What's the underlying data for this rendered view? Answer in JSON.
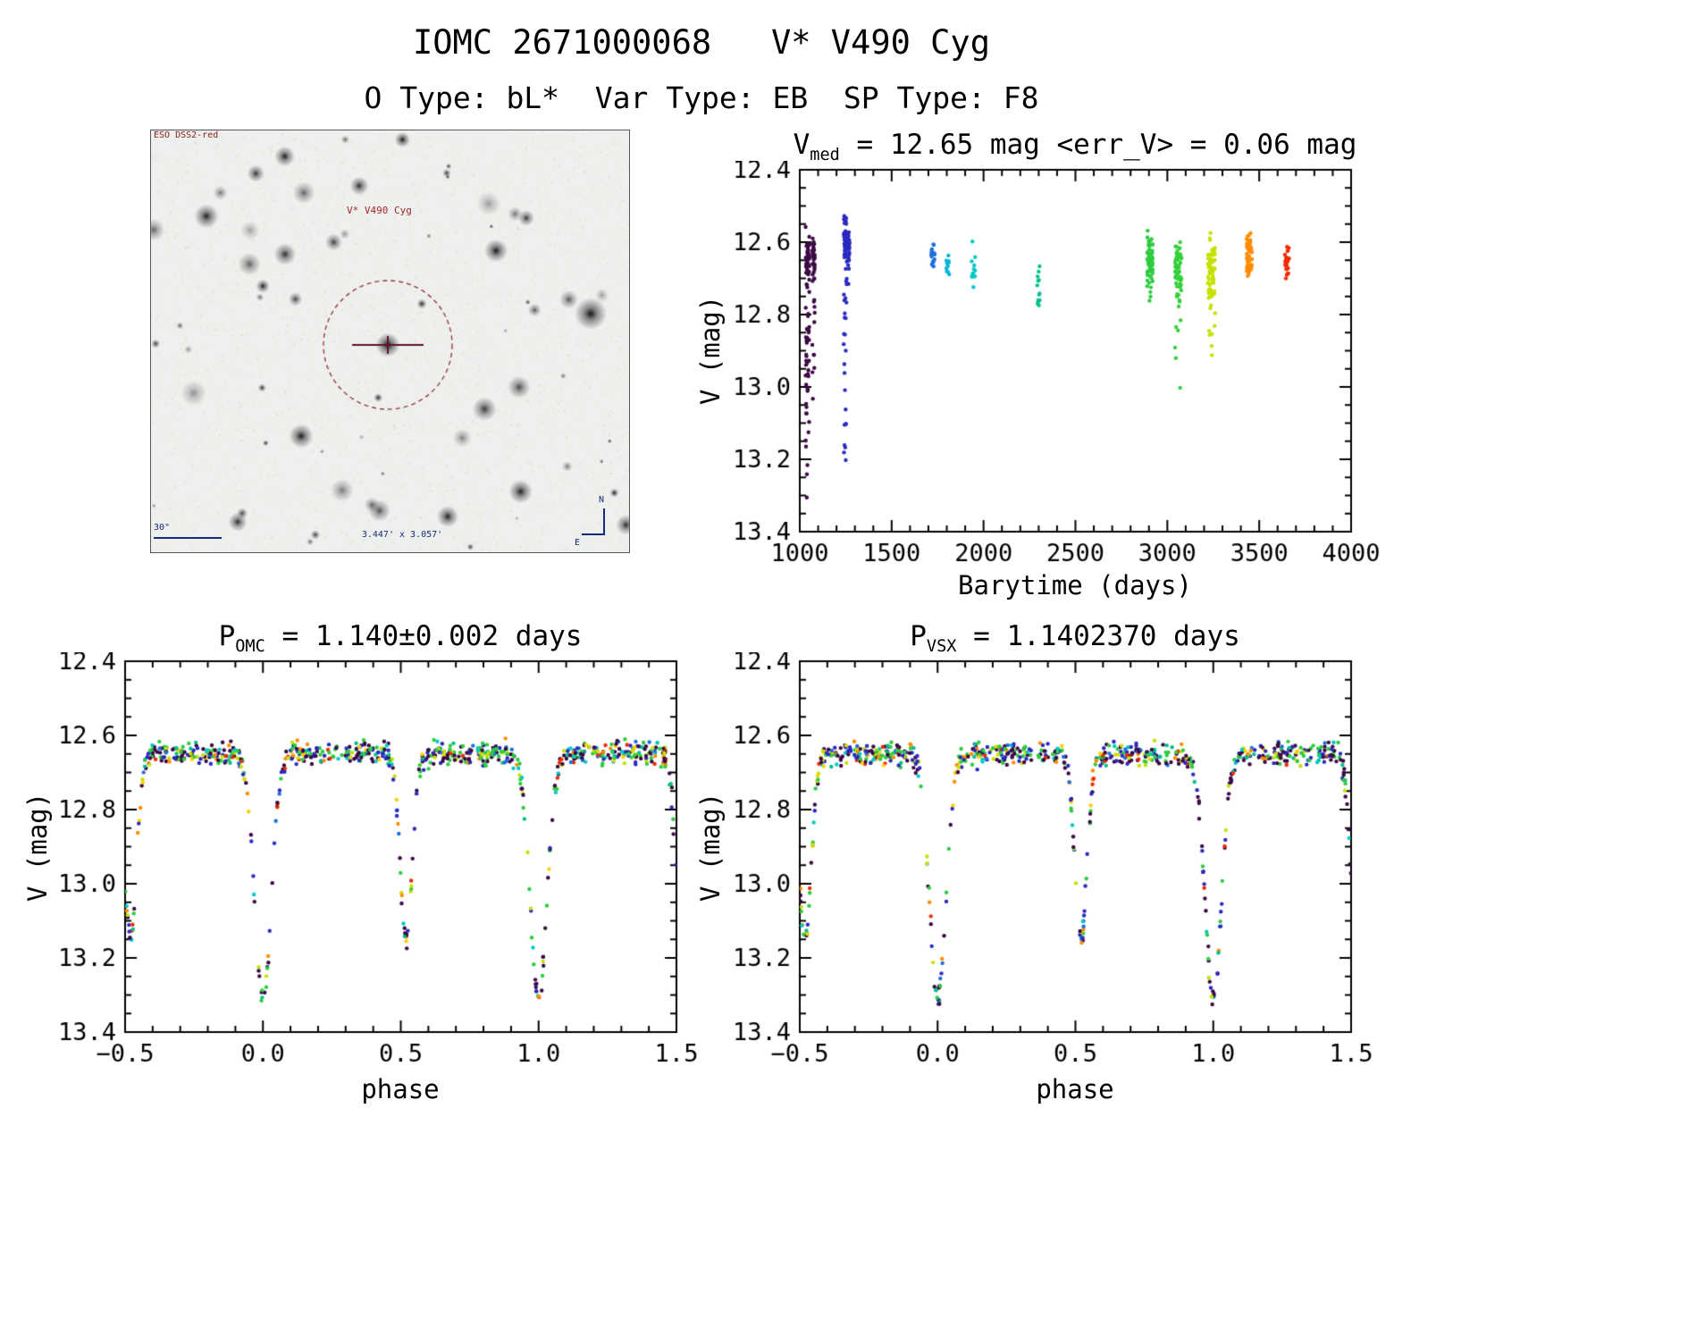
{
  "page": {
    "background": "#ffffff"
  },
  "header": {
    "title": "IOMC 2671000068   V* V490 Cyg",
    "subtitle": "O Type: bL*  Var Type: EB  SP Type: F8"
  },
  "finder": {
    "survey_label": "ESO DSS2-red",
    "target_label": "V* V490 Cyg",
    "scale_label": "30\"",
    "fov_label": "3.447' x 3.057'",
    "compass_north": "N",
    "compass_east": "E",
    "annotation_red": "#a02828",
    "annotation_blue": "#1a2a7a"
  },
  "chart_data": [
    {
      "id": "timeline",
      "type": "scatter",
      "title": {
        "prefix": "V",
        "sub": "med",
        "rest": " = 12.65 mag <err_V> = 0.06 mag"
      },
      "xlabel": "Barytime (days)",
      "ylabel": "V (mag)",
      "xlim": [
        1000,
        4000
      ],
      "ylim": [
        13.4,
        12.4
      ],
      "xticks": [
        1000,
        1500,
        2000,
        2500,
        3000,
        3500,
        4000
      ],
      "xtick_labels": [
        "1000",
        "1500",
        "2000",
        "2500",
        "3000",
        "3500",
        "4000"
      ],
      "yticks": [
        12.4,
        12.6,
        12.8,
        13.0,
        13.2,
        13.4
      ],
      "ytick_labels": [
        "12.4",
        "12.6",
        "12.8",
        "13.0",
        "13.2",
        "13.4"
      ],
      "x_minor_step": 100,
      "y_minor_step": 0.05,
      "clusters": [
        {
          "barytime": 1042,
          "xspread": 10,
          "n": 90,
          "color": "#3b0a45",
          "band": [
            12.53,
            12.78
          ],
          "tail_mag": 13.32,
          "tail_frac": 0.38
        },
        {
          "barytime": 1075,
          "xspread": 7,
          "n": 45,
          "color": "#3b0a45",
          "band": [
            12.55,
            12.75
          ],
          "tail_mag": 13.06,
          "tail_frac": 0.22
        },
        {
          "barytime": 1248,
          "xspread": 9,
          "n": 75,
          "color": "#2a2ac0",
          "band": [
            12.5,
            12.7
          ],
          "tail_mag": 13.22,
          "tail_frac": 0.3
        },
        {
          "barytime": 1268,
          "xspread": 5,
          "n": 22,
          "color": "#2a2ac0",
          "band": [
            12.55,
            12.7
          ],
          "tail_mag": 12.92,
          "tail_frac": 0.12
        },
        {
          "barytime": 1725,
          "xspread": 10,
          "n": 16,
          "color": "#1e6fe0",
          "band": [
            12.57,
            12.72
          ],
          "tail_mag": 12.72,
          "tail_frac": 0
        },
        {
          "barytime": 1805,
          "xspread": 8,
          "n": 10,
          "color": "#00b4d8",
          "band": [
            12.6,
            12.72
          ],
          "tail_mag": 12.72,
          "tail_frac": 0
        },
        {
          "barytime": 1945,
          "xspread": 10,
          "n": 14,
          "color": "#00c8c8",
          "band": [
            12.58,
            12.76
          ],
          "tail_mag": 12.76,
          "tail_frac": 0
        },
        {
          "barytime": 2300,
          "xspread": 8,
          "n": 14,
          "color": "#00bf8f",
          "band": [
            12.6,
            12.86
          ],
          "tail_mag": 12.86,
          "tail_frac": 0
        },
        {
          "barytime": 2905,
          "xspread": 16,
          "n": 60,
          "color": "#2ecc40",
          "band": [
            12.54,
            12.78
          ],
          "tail_mag": 12.78,
          "tail_frac": 0
        },
        {
          "barytime": 3060,
          "xspread": 18,
          "n": 70,
          "color": "#35d03a",
          "band": [
            12.54,
            12.8
          ],
          "tail_mag": 13.04,
          "tail_frac": 0.12
        },
        {
          "barytime": 3240,
          "xspread": 20,
          "n": 70,
          "color": "#c8e000",
          "band": [
            12.54,
            12.82
          ],
          "tail_mag": 12.92,
          "tail_frac": 0.1
        },
        {
          "barytime": 3445,
          "xspread": 16,
          "n": 45,
          "color": "#ff8c00",
          "band": [
            12.53,
            12.74
          ],
          "tail_mag": 12.74,
          "tail_frac": 0
        },
        {
          "barytime": 3650,
          "xspread": 12,
          "n": 28,
          "color": "#ee2b00",
          "band": [
            12.58,
            12.73
          ],
          "tail_mag": 12.73,
          "tail_frac": 0
        }
      ]
    },
    {
      "id": "phase_omc",
      "type": "scatter",
      "title": {
        "prefix": "P",
        "sub": "OMC",
        "rest": " = 1.140±0.002 days"
      },
      "xlabel": "phase",
      "ylabel": "V (mag)",
      "xlim": [
        -0.5,
        1.5
      ],
      "ylim": [
        13.4,
        12.4
      ],
      "xticks": [
        -0.5,
        0.0,
        0.5,
        1.0,
        1.5
      ],
      "xtick_labels": [
        "−0.5",
        "0.0",
        "0.5",
        "1.0",
        "1.5"
      ],
      "yticks": [
        12.4,
        12.6,
        12.8,
        13.0,
        13.2,
        13.4
      ],
      "ytick_labels": [
        "12.4",
        "12.6",
        "12.8",
        "13.0",
        "13.2",
        "13.4"
      ],
      "x_minor_step": 0.1,
      "y_minor_step": 0.05,
      "lightcurve": {
        "base_mag": 12.65,
        "scatter_mag": 0.045,
        "primary_eclipse": {
          "phase": 0.0,
          "depth_mag": 0.66,
          "width_sigma": 0.03
        },
        "secondary_eclipse": {
          "phase": 0.52,
          "depth_mag": 0.5,
          "width_sigma": 0.022
        },
        "n_points": 750,
        "seed": 7,
        "point_colors": [
          {
            "color": "#3b0a45",
            "weight": 0.3
          },
          {
            "color": "#2a2ac0",
            "weight": 0.15
          },
          {
            "color": "#1e6fe0",
            "weight": 0.05
          },
          {
            "color": "#00c8c8",
            "weight": 0.05
          },
          {
            "color": "#00bf8f",
            "weight": 0.04
          },
          {
            "color": "#2ecc40",
            "weight": 0.18
          },
          {
            "color": "#c8e000",
            "weight": 0.1
          },
          {
            "color": "#ffd000",
            "weight": 0.03
          },
          {
            "color": "#ff8c00",
            "weight": 0.06
          },
          {
            "color": "#ee2b00",
            "weight": 0.04
          }
        ]
      }
    },
    {
      "id": "phase_vsx",
      "type": "scatter",
      "title": {
        "prefix": "P",
        "sub": "VSX",
        "rest": " = 1.1402370 days"
      },
      "xlabel": "phase",
      "ylabel": "V (mag)",
      "xlim": [
        -0.5,
        1.5
      ],
      "ylim": [
        13.4,
        12.4
      ],
      "xticks": [
        -0.5,
        0.0,
        0.5,
        1.0,
        1.5
      ],
      "xtick_labels": [
        "−0.5",
        "0.0",
        "0.5",
        "1.0",
        "1.5"
      ],
      "yticks": [
        12.4,
        12.6,
        12.8,
        13.0,
        13.2,
        13.4
      ],
      "ytick_labels": [
        "12.4",
        "12.6",
        "12.8",
        "13.0",
        "13.2",
        "13.4"
      ],
      "x_minor_step": 0.1,
      "y_minor_step": 0.05,
      "lightcurve": {
        "base_mag": 12.65,
        "scatter_mag": 0.045,
        "primary_eclipse": {
          "phase": 0.0,
          "depth_mag": 0.66,
          "width_sigma": 0.03
        },
        "secondary_eclipse": {
          "phase": 0.52,
          "depth_mag": 0.5,
          "width_sigma": 0.022
        },
        "n_points": 750,
        "seed": 11,
        "point_colors": [
          {
            "color": "#3b0a45",
            "weight": 0.3
          },
          {
            "color": "#2a2ac0",
            "weight": 0.15
          },
          {
            "color": "#1e6fe0",
            "weight": 0.05
          },
          {
            "color": "#00c8c8",
            "weight": 0.05
          },
          {
            "color": "#00bf8f",
            "weight": 0.04
          },
          {
            "color": "#2ecc40",
            "weight": 0.18
          },
          {
            "color": "#c8e000",
            "weight": 0.1
          },
          {
            "color": "#ffd000",
            "weight": 0.03
          },
          {
            "color": "#ff8c00",
            "weight": 0.06
          },
          {
            "color": "#ee2b00",
            "weight": 0.04
          }
        ]
      }
    }
  ]
}
